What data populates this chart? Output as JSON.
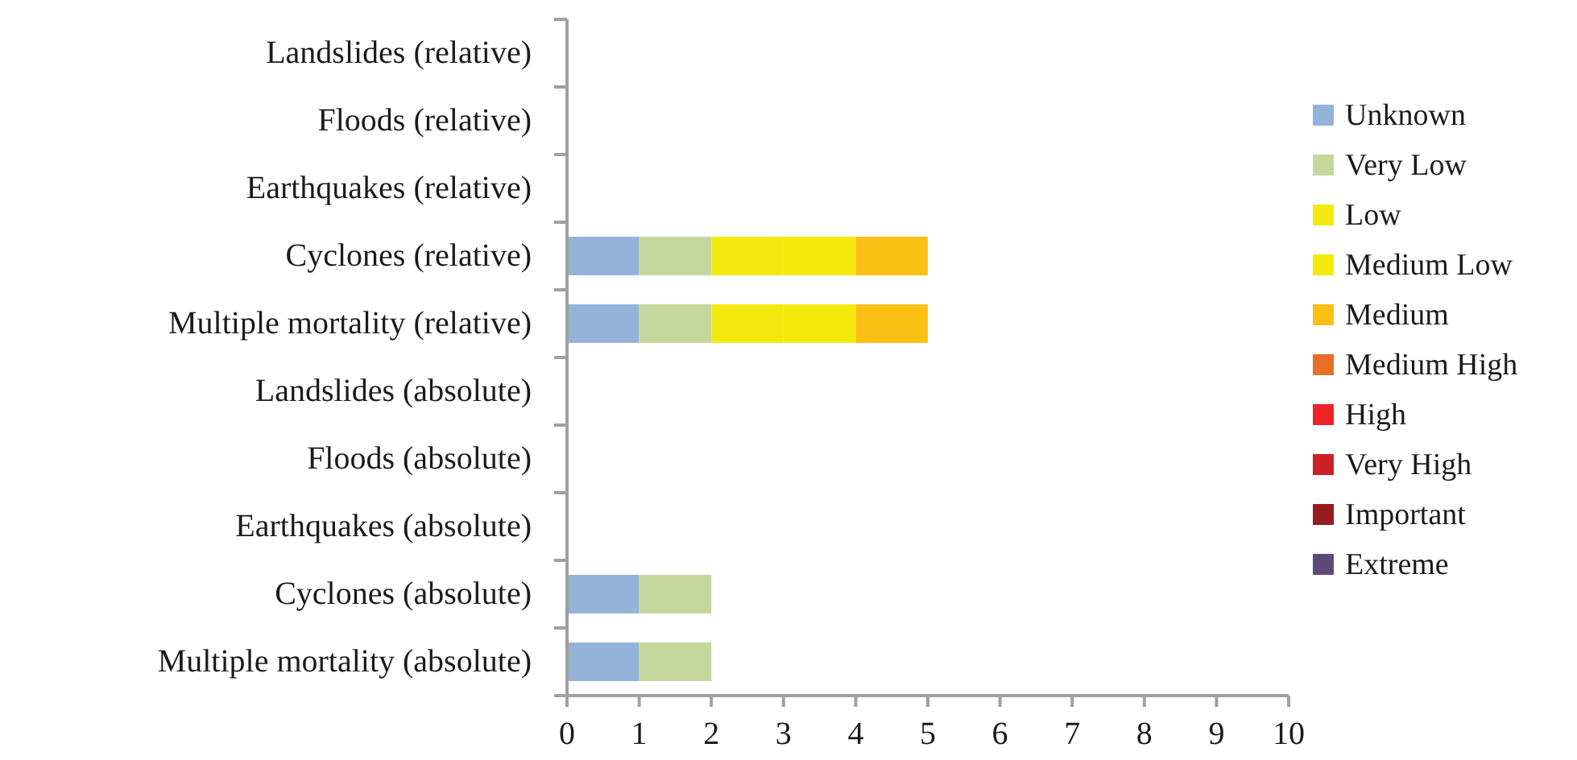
{
  "chart_data": {
    "type": "bar",
    "orientation": "horizontal",
    "stacked": true,
    "categories": [
      "Landslides (relative)",
      "Floods (relative)",
      "Earthquakes (relative)",
      "Cyclones (relative)",
      "Multiple mortality  (relative)",
      "Landslides (absolute)",
      "Floods (absolute)",
      "Earthquakes (absolute)",
      "Cyclones (absolute)",
      "Multiple mortality  (absolute)"
    ],
    "series": [
      {
        "name": "Unknown",
        "color": "#93b3d9",
        "values": [
          null,
          null,
          null,
          1,
          1,
          null,
          null,
          null,
          1,
          1
        ]
      },
      {
        "name": "Very Low",
        "color": "#c5d79c",
        "values": [
          null,
          null,
          null,
          1,
          1,
          null,
          null,
          null,
          1,
          1
        ]
      },
      {
        "name": "Low",
        "color": "#f3e90e",
        "values": [
          null,
          null,
          null,
          1,
          1,
          null,
          null,
          null,
          null,
          null
        ]
      },
      {
        "name": "Medium Low",
        "color": "#f3ea0c",
        "values": [
          null,
          null,
          null,
          1,
          1,
          null,
          null,
          null,
          null,
          null
        ]
      },
      {
        "name": "Medium",
        "color": "#fcbf14",
        "values": [
          null,
          null,
          null,
          1,
          1,
          null,
          null,
          null,
          null,
          null
        ]
      },
      {
        "name": "Medium High",
        "color": "#e66f25",
        "values": [
          null,
          null,
          null,
          null,
          null,
          null,
          null,
          null,
          null,
          null
        ]
      },
      {
        "name": "High",
        "color": "#ee2229",
        "values": [
          null,
          null,
          null,
          null,
          null,
          null,
          null,
          null,
          null,
          null
        ]
      },
      {
        "name": "Very High",
        "color": "#cc2027",
        "values": [
          null,
          null,
          null,
          null,
          null,
          null,
          null,
          null,
          null,
          null
        ]
      },
      {
        "name": "Important",
        "color": "#961c20",
        "values": [
          null,
          null,
          null,
          null,
          null,
          null,
          null,
          null,
          null,
          null
        ]
      },
      {
        "name": "Extreme",
        "color": "#5f497a",
        "values": [
          null,
          null,
          null,
          null,
          null,
          null,
          null,
          null,
          null,
          null
        ]
      }
    ],
    "xlim": [
      0,
      10
    ],
    "xticks": [
      0,
      1,
      2,
      3,
      4,
      5,
      6,
      7,
      8,
      9,
      10
    ],
    "grid": false,
    "legend": "right"
  }
}
